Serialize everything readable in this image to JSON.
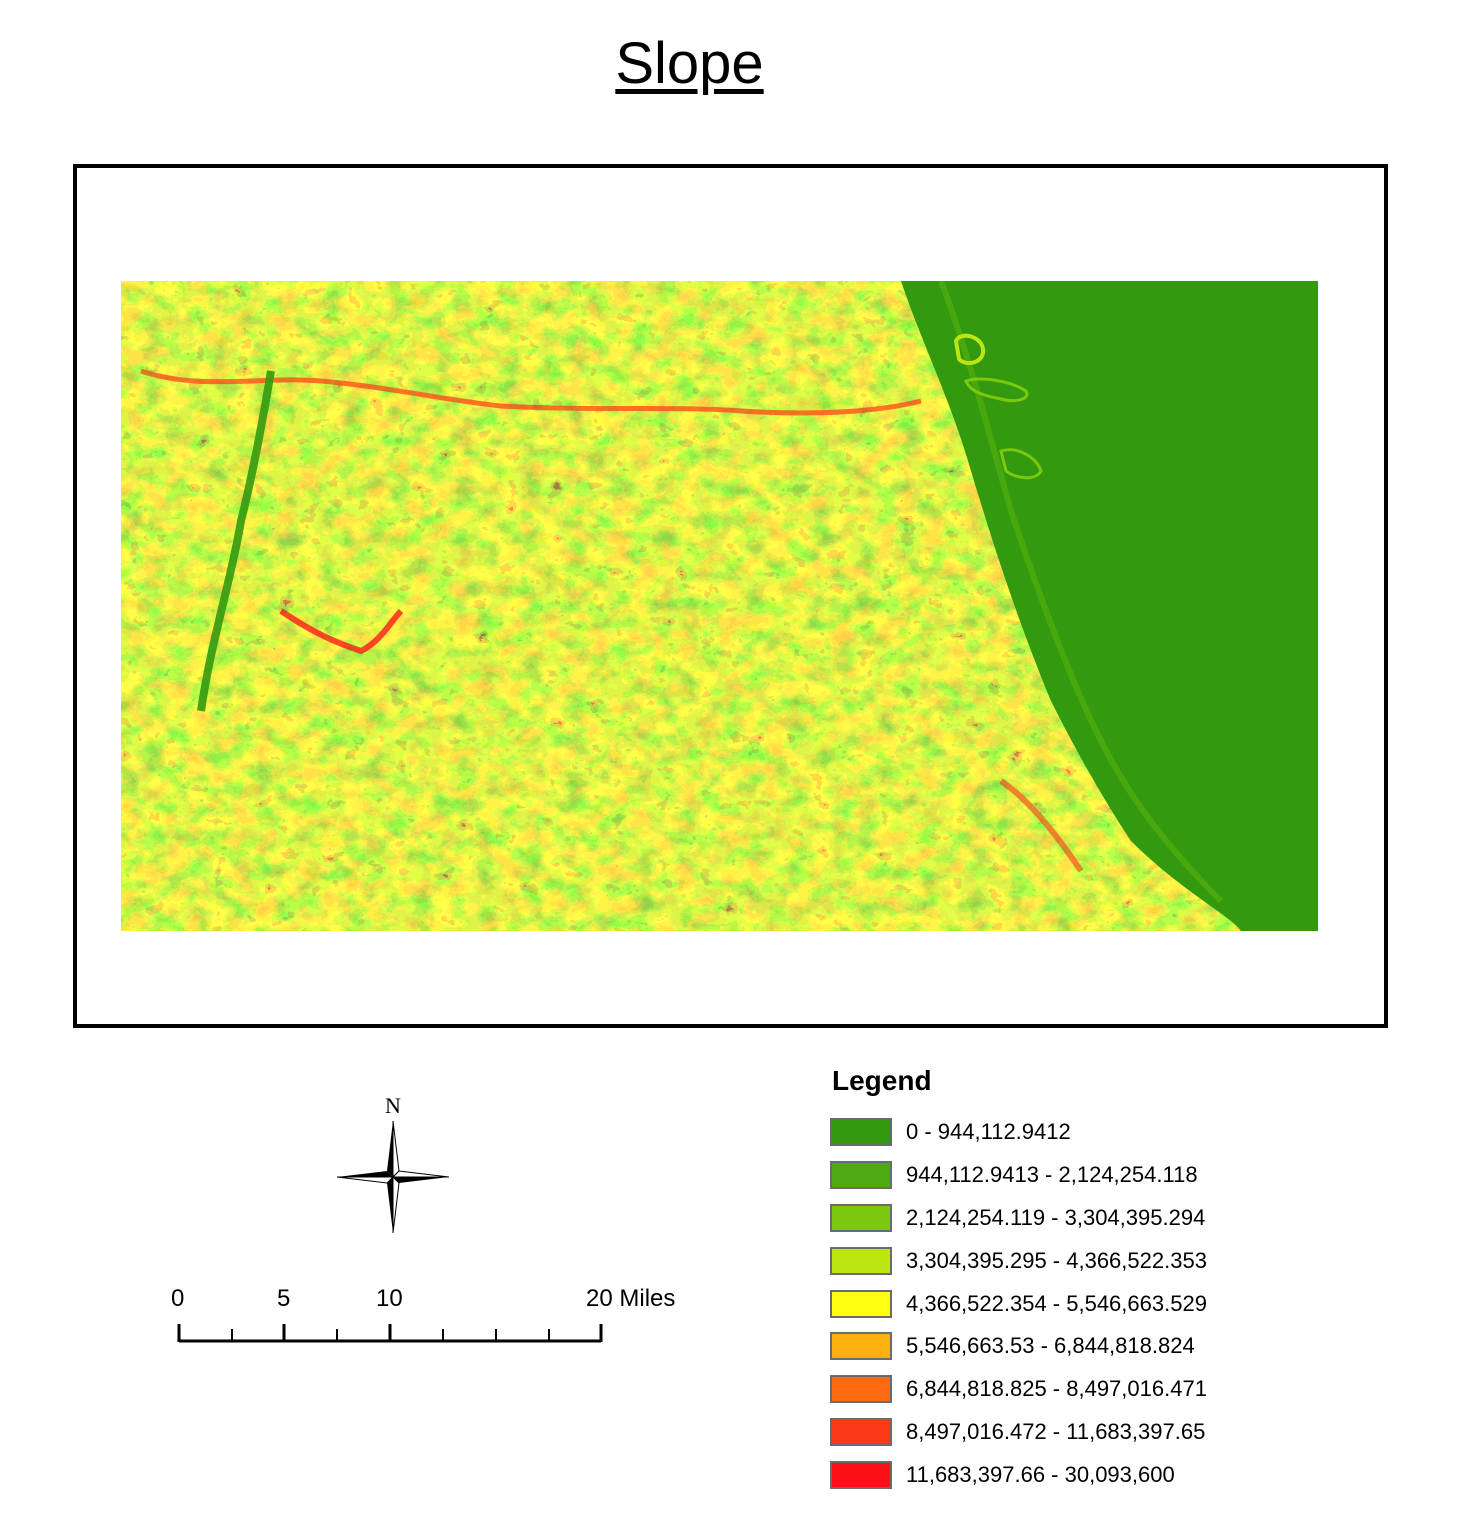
{
  "title": "Slope",
  "north_arrow": {
    "label": "N"
  },
  "scale_bar": {
    "ticks": [
      "0",
      "5",
      "10",
      "20 Miles"
    ]
  },
  "legend": {
    "title": "Legend",
    "items": [
      {
        "label": "0 - 944,112.9412",
        "color": "#339a0f"
      },
      {
        "label": "944,112.9413 - 2,124,254.118",
        "color": "#4daa10"
      },
      {
        "label": "2,124,254.119 - 3,304,395.294",
        "color": "#7bc80f"
      },
      {
        "label": "3,304,395.295 - 4,366,522.353",
        "color": "#bde512"
      },
      {
        "label": "4,366,522.354 - 5,546,663.529",
        "color": "#ffff11"
      },
      {
        "label": "5,546,663.53 - 6,844,818.824",
        "color": "#fdb10e"
      },
      {
        "label": "6,844,818.825 - 8,497,016.471",
        "color": "#fd6a12"
      },
      {
        "label": "8,497,016.472 - 11,683,397.65",
        "color": "#fd3a17"
      },
      {
        "label": "11,683,397.66 - 30,093,600",
        "color": "#fd0f17"
      }
    ]
  }
}
